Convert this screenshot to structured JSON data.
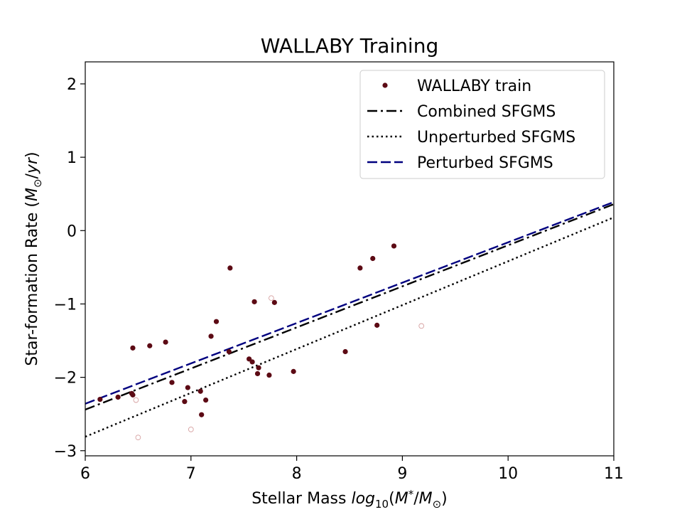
{
  "chart_data": {
    "type": "scatter",
    "title": "WALLABY Training",
    "xlabel_prefix": "Stellar Mass ",
    "xlabel_math": "log10(M*/M⊙)",
    "ylabel_prefix": "Star-formation Rate (",
    "ylabel_math": "M⊙/yr",
    "ylabel_suffix": ")",
    "xlim": [
      6,
      11
    ],
    "ylim": [
      -3.07,
      2.3
    ],
    "xticks": [
      6,
      7,
      8,
      9,
      10,
      11
    ],
    "xtick_labels": [
      "6",
      "7",
      "8",
      "9",
      "10",
      "11"
    ],
    "yticks": [
      -3,
      -2,
      -1,
      0,
      1,
      2
    ],
    "ytick_labels": [
      "−3",
      "−2",
      "−1",
      "0",
      "1",
      "2"
    ],
    "legend_position": "upper-right",
    "series": [
      {
        "name": "WALLABY train",
        "kind": "points",
        "color": "#5c0a14",
        "points": [
          [
            6.14,
            -2.3
          ],
          [
            6.31,
            -2.27
          ],
          [
            6.44,
            -2.22
          ],
          [
            6.45,
            -2.24
          ],
          [
            6.45,
            -1.6
          ],
          [
            6.61,
            -1.57
          ],
          [
            6.76,
            -1.52
          ],
          [
            6.82,
            -2.07
          ],
          [
            6.94,
            -2.33
          ],
          [
            6.97,
            -2.14
          ],
          [
            7.09,
            -2.19
          ],
          [
            7.1,
            -2.51
          ],
          [
            7.14,
            -2.31
          ],
          [
            7.19,
            -1.44
          ],
          [
            7.24,
            -1.24
          ],
          [
            7.36,
            -1.65
          ],
          [
            7.37,
            -0.51
          ],
          [
            7.55,
            -1.75
          ],
          [
            7.58,
            -1.79
          ],
          [
            7.6,
            -0.97
          ],
          [
            7.63,
            -1.95
          ],
          [
            7.64,
            -1.87
          ],
          [
            7.74,
            -1.97
          ],
          [
            7.79,
            -0.98
          ],
          [
            7.97,
            -1.92
          ],
          [
            8.46,
            -1.65
          ],
          [
            8.6,
            -0.51
          ],
          [
            8.72,
            -0.38
          ],
          [
            8.76,
            -1.29
          ],
          [
            8.92,
            -0.21
          ]
        ]
      },
      {
        "name": "faint",
        "kind": "hollow",
        "color": "#d6a0a0",
        "points": [
          [
            6.48,
            -2.31
          ],
          [
            6.5,
            -2.82
          ],
          [
            7.0,
            -2.71
          ],
          [
            7.76,
            -0.92
          ],
          [
            9.18,
            -1.3
          ]
        ]
      },
      {
        "name": "Combined SFGMS",
        "kind": "line",
        "style": "dashdot",
        "color": "#000000",
        "x": [
          6,
          11
        ],
        "y": [
          -2.44,
          0.36
        ]
      },
      {
        "name": "Unperturbed SFGMS",
        "kind": "line",
        "style": "dotted",
        "color": "#000000",
        "x": [
          6,
          11
        ],
        "y": [
          -2.81,
          0.18
        ]
      },
      {
        "name": "Perturbed SFGMS",
        "kind": "line",
        "style": "dashed",
        "color": "#00007f",
        "x": [
          6,
          11
        ],
        "y": [
          -2.36,
          0.39
        ]
      }
    ],
    "legend": [
      {
        "label": "WALLABY train",
        "kind": "points",
        "color": "#5c0a14"
      },
      {
        "label": "Combined SFGMS",
        "kind": "line",
        "style": "dashdot",
        "color": "#000000"
      },
      {
        "label": "Unperturbed SFGMS",
        "kind": "line",
        "style": "dotted",
        "color": "#000000"
      },
      {
        "label": "Perturbed SFGMS",
        "kind": "line",
        "style": "dashed",
        "color": "#00007f"
      }
    ]
  }
}
